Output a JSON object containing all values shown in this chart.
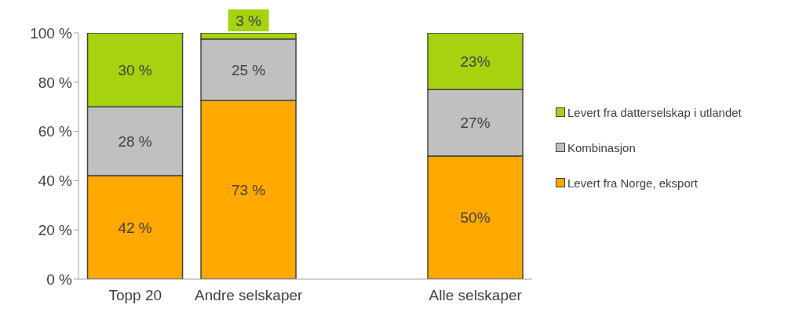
{
  "chart_data": {
    "type": "bar",
    "stacked": true,
    "categories": [
      "Topp 20",
      "Andre selskaper",
      null,
      "Alle selskaper"
    ],
    "series": [
      {
        "name": "Levert fra Norge, eksport",
        "color": "#ffa800",
        "values": [
          42,
          72.5,
          null,
          50
        ],
        "value_labels": [
          "42 %",
          "73 %",
          null,
          "50%"
        ]
      },
      {
        "name": "Kombinasjon",
        "color": "#c0c0c0",
        "values": [
          28,
          25,
          null,
          27
        ],
        "value_labels": [
          "28 %",
          "25 %",
          null,
          "27%"
        ]
      },
      {
        "name": "Levert fra datterselskap i utlandet",
        "color": "#a6d210",
        "values": [
          30,
          2.5,
          null,
          23
        ],
        "value_labels": [
          "30 %",
          "3 %",
          null,
          "23%"
        ]
      }
    ],
    "ylim": [
      0,
      100
    ],
    "yticks": [
      {
        "value": 0,
        "label": "0 %"
      },
      {
        "value": 20,
        "label": "20 %"
      },
      {
        "value": 40,
        "label": "40 %"
      },
      {
        "value": 60,
        "label": "60 %"
      },
      {
        "value": 80,
        "label": "80 %"
      },
      {
        "value": 100,
        "label": "100 %"
      }
    ],
    "grid": false,
    "legend": "right"
  }
}
